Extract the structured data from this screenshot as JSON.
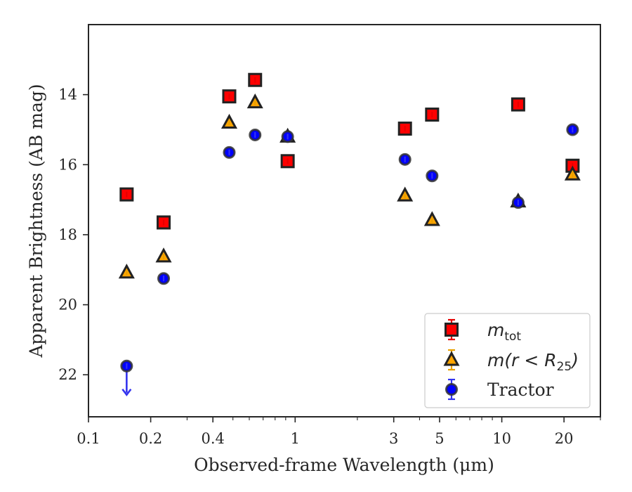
{
  "chart_data": {
    "type": "scatter",
    "xlabel": "Observed-frame Wavelength (μm)",
    "ylabel": "Apparent Brightness (AB mag)",
    "xscale": "log",
    "xlim": [
      0.1,
      30
    ],
    "ylim": [
      23.2,
      12.0
    ],
    "y_inverted": true,
    "xticks": [
      {
        "value": 0.1,
        "label": "0.1"
      },
      {
        "value": 0.2,
        "label": "0.2"
      },
      {
        "value": 0.4,
        "label": "0.4"
      },
      {
        "value": 1,
        "label": "1"
      },
      {
        "value": 3,
        "label": "3"
      },
      {
        "value": 5,
        "label": "5"
      },
      {
        "value": 10,
        "label": "10"
      },
      {
        "value": 20,
        "label": "20"
      }
    ],
    "yticks": [
      {
        "value": 14,
        "label": "14"
      },
      {
        "value": 16,
        "label": "16"
      },
      {
        "value": 18,
        "label": "18"
      },
      {
        "value": 20,
        "label": "20"
      },
      {
        "value": 22,
        "label": "22"
      }
    ],
    "grid": false,
    "legend_position": "lower right",
    "series": [
      {
        "legend_main": "m",
        "legend_sub": "tot",
        "marker": "square",
        "color": "#ff0000",
        "edge_color": "#222222",
        "errorbar_color": "#e60000",
        "points": [
          {
            "x": 0.153,
            "y": 16.85
          },
          {
            "x": 0.231,
            "y": 17.65
          },
          {
            "x": 0.48,
            "y": 14.05
          },
          {
            "x": 0.64,
            "y": 13.58
          },
          {
            "x": 0.92,
            "y": 15.9
          },
          {
            "x": 3.4,
            "y": 14.97
          },
          {
            "x": 4.6,
            "y": 14.57
          },
          {
            "x": 12.0,
            "y": 14.28
          },
          {
            "x": 22.0,
            "y": 16.03
          }
        ]
      },
      {
        "legend_main": "m(r < R",
        "legend_sub": "25",
        "legend_close": ")",
        "marker": "triangle",
        "color": "#ffa500",
        "edge_color": "#222222",
        "errorbar_color": "#e8a000",
        "points": [
          {
            "x": 0.153,
            "y": 19.08
          },
          {
            "x": 0.231,
            "y": 18.62
          },
          {
            "x": 0.48,
            "y": 14.8
          },
          {
            "x": 0.64,
            "y": 14.22
          },
          {
            "x": 0.92,
            "y": 15.2
          },
          {
            "x": 3.4,
            "y": 16.88
          },
          {
            "x": 4.6,
            "y": 17.58
          },
          {
            "x": 12.0,
            "y": 17.05
          },
          {
            "x": 22.0,
            "y": 16.28
          }
        ]
      },
      {
        "name": "Tractor",
        "marker": "circle",
        "color": "#0000ff",
        "edge_color": "#333333",
        "errorbar_color": "#3333ee",
        "points": [
          {
            "x": 0.153,
            "y": 21.75,
            "upper_limit": true
          },
          {
            "x": 0.231,
            "y": 19.25
          },
          {
            "x": 0.48,
            "y": 15.65
          },
          {
            "x": 0.64,
            "y": 15.15
          },
          {
            "x": 0.92,
            "y": 15.2
          },
          {
            "x": 3.4,
            "y": 15.85
          },
          {
            "x": 4.6,
            "y": 16.32
          },
          {
            "x": 12.0,
            "y": 17.08
          },
          {
            "x": 22.0,
            "y": 15.0
          }
        ]
      }
    ]
  }
}
